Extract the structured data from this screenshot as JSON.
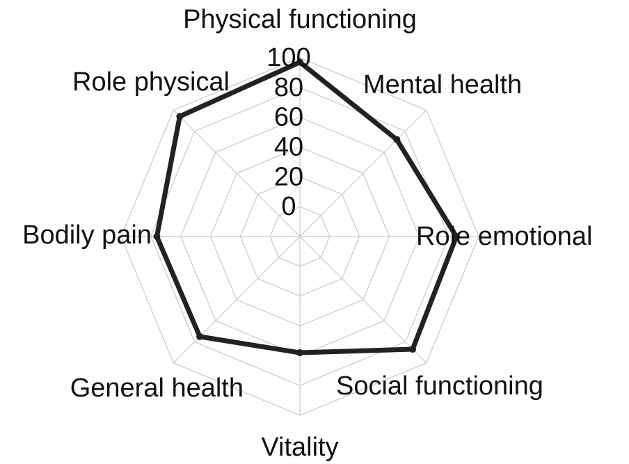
{
  "chart_data": {
    "type": "radar",
    "categories": [
      "Physical functioning",
      "Mental health",
      "Role emotional",
      "Social functioning",
      "Vitality",
      "General health",
      "Bodily pain",
      "Role physical"
    ],
    "values": [
      97,
      72,
      85,
      87,
      58,
      75,
      76,
      94
    ],
    "color": "#222222",
    "grid_color": "#cccccc",
    "ylim": [
      -20,
      100
    ],
    "yticks": [
      0,
      20,
      40,
      60,
      80,
      100
    ],
    "grid": true
  }
}
